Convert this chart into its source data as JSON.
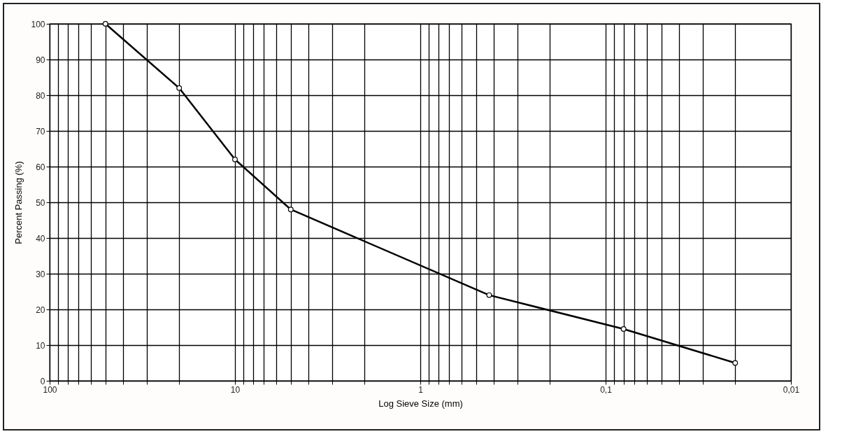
{
  "chart_data": {
    "type": "line",
    "xlabel": "Log Sieve Size (mm)",
    "ylabel": "Percent Passing (%)",
    "x": [
      50,
      20,
      10,
      5,
      0.425,
      0.08,
      0.02
    ],
    "series": [
      {
        "color": "#000000",
        "values": [
          100,
          82,
          62,
          48,
          24,
          14.5,
          5
        ]
      }
    ],
    "log": "x",
    "xlim": [
      100,
      0.01
    ],
    "xticks": [
      100,
      {
        "value": 90,
        "label": null
      },
      {
        "value": 80,
        "label": null
      },
      {
        "value": 70,
        "label": null
      },
      {
        "value": 60,
        "label": null
      },
      {
        "value": 50,
        "label": null
      },
      {
        "value": 40,
        "label": null
      },
      {
        "value": 30,
        "label": null
      },
      {
        "value": 20,
        "label": null
      },
      10,
      {
        "value": 9,
        "label": null
      },
      {
        "value": 8,
        "label": null
      },
      {
        "value": 7,
        "label": null
      },
      {
        "value": 6,
        "label": null
      },
      {
        "value": 5,
        "label": null
      },
      {
        "value": 4,
        "label": null
      },
      {
        "value": 3,
        "label": null
      },
      {
        "value": 2,
        "label": null
      },
      1,
      {
        "value": 0.9,
        "label": null
      },
      {
        "value": 0.8,
        "label": null
      },
      {
        "value": 0.7,
        "label": null
      },
      {
        "value": 0.6,
        "label": null
      },
      {
        "value": 0.5,
        "label": null
      },
      {
        "value": 0.4,
        "label": null
      },
      {
        "value": 0.3,
        "label": null
      },
      {
        "value": 0.2,
        "label": null
      },
      {
        "value": 0.1,
        "label": "0,1"
      },
      {
        "value": 0.09,
        "label": null
      },
      {
        "value": 0.08,
        "label": null
      },
      {
        "value": 0.07,
        "label": null
      },
      {
        "value": 0.06,
        "label": null
      },
      {
        "value": 0.05,
        "label": null
      },
      {
        "value": 0.04,
        "label": null
      },
      {
        "value": 0.03,
        "label": null
      },
      {
        "value": 0.02,
        "label": null
      },
      {
        "value": 0.01,
        "label": "0,01"
      }
    ],
    "ylim": [
      0,
      100
    ],
    "yticks": [
      0,
      10,
      20,
      30,
      40,
      50,
      60,
      70,
      80,
      90,
      100
    ],
    "grid": true,
    "marker": "circle",
    "line_style": "solid"
  }
}
